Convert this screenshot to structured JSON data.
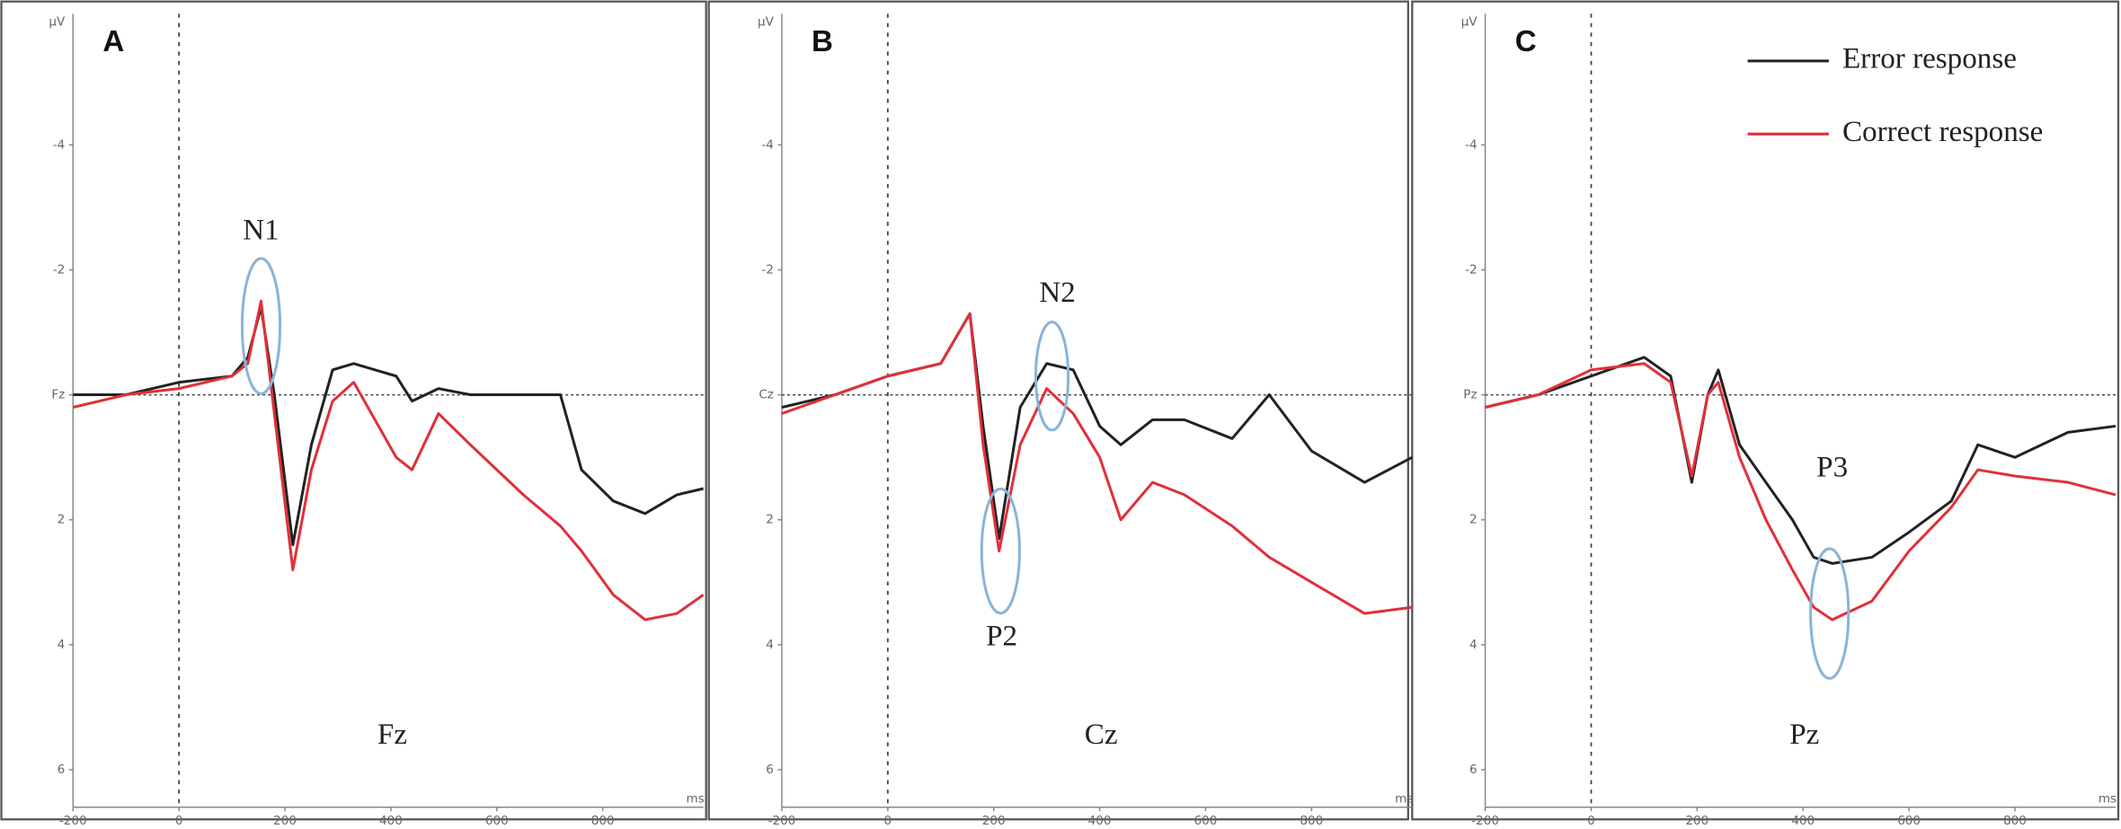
{
  "chart_data": [
    {
      "type": "line",
      "panel": "A",
      "channel": "Fz",
      "y_label": "μV",
      "x_label": "ms",
      "xlim": [
        -200,
        990
      ],
      "xticks": [
        -200,
        0,
        200,
        400,
        600,
        800
      ],
      "ylim": [
        -6.1,
        6.6
      ],
      "y_inverted": true,
      "yticks": [
        -4,
        -2,
        {
          "value": 0,
          "label": "Fz"
        },
        2,
        4,
        6
      ],
      "x": [
        -200,
        -100,
        0,
        100,
        130,
        155,
        180,
        215,
        250,
        290,
        330,
        370,
        410,
        440,
        490,
        550,
        650,
        720,
        760,
        820,
        880,
        940,
        990
      ],
      "series": [
        {
          "color": "#222222",
          "values": [
            0,
            0,
            -0.2,
            -0.3,
            -0.6,
            -1.4,
            0,
            2.4,
            0.8,
            -0.4,
            -0.5,
            -0.4,
            -0.3,
            0.1,
            -0.1,
            0,
            0,
            0,
            1.2,
            1.7,
            1.9,
            1.6,
            1.5
          ]
        },
        {
          "color": "#e0303a",
          "values": [
            0.2,
            0,
            -0.1,
            -0.3,
            -0.5,
            -1.5,
            0.3,
            2.8,
            1.2,
            0.1,
            -0.2,
            0.4,
            1.0,
            1.2,
            0.3,
            0.8,
            1.6,
            2.1,
            2.5,
            3.2,
            3.6,
            3.5,
            3.2
          ]
        }
      ],
      "annotations": [
        "N1"
      ]
    },
    {
      "type": "line",
      "panel": "B",
      "channel": "Cz",
      "y_label": "μV",
      "x_label": "ms",
      "xlim": [
        -200,
        990
      ],
      "xticks": [
        -200,
        0,
        200,
        400,
        600,
        800
      ],
      "ylim": [
        -6.1,
        6.6
      ],
      "y_inverted": true,
      "yticks": [
        -4,
        -2,
        {
          "value": 0,
          "label": "Cz"
        },
        2,
        4,
        6
      ],
      "x": [
        -200,
        -100,
        0,
        100,
        155,
        180,
        210,
        250,
        300,
        350,
        400,
        440,
        500,
        560,
        650,
        720,
        800,
        900,
        990
      ],
      "series": [
        {
          "color": "#222222",
          "values": [
            0.2,
            0,
            -0.3,
            -0.5,
            -1.3,
            0.5,
            2.3,
            0.2,
            -0.5,
            -0.4,
            0.5,
            0.8,
            0.4,
            0.4,
            0.7,
            0,
            0.9,
            1.4,
            1.0
          ]
        },
        {
          "color": "#e0303a",
          "values": [
            0.3,
            0,
            -0.3,
            -0.5,
            -1.3,
            0.8,
            2.5,
            0.8,
            -0.1,
            0.3,
            1.0,
            2.0,
            1.4,
            1.6,
            2.1,
            2.6,
            3.0,
            3.5,
            3.4
          ]
        }
      ],
      "annotations": [
        "N2",
        "P2"
      ]
    },
    {
      "type": "line",
      "panel": "C",
      "channel": "Pz",
      "y_label": "μV",
      "x_label": "ms",
      "xlim": [
        -200,
        990
      ],
      "xticks": [
        -200,
        0,
        200,
        400,
        600,
        800
      ],
      "ylim": [
        -6.1,
        6.6
      ],
      "y_inverted": true,
      "yticks": [
        -4,
        -2,
        {
          "value": 0,
          "label": "Pz"
        },
        2,
        4,
        6
      ],
      "x": [
        -200,
        -100,
        0,
        100,
        150,
        190,
        220,
        240,
        280,
        330,
        380,
        420,
        455,
        530,
        600,
        680,
        730,
        800,
        900,
        990
      ],
      "series": [
        {
          "name": "Error response",
          "color": "#222222",
          "values": [
            0.2,
            0,
            -0.3,
            -0.6,
            -0.3,
            1.4,
            0,
            -0.4,
            0.8,
            1.4,
            2.0,
            2.6,
            2.7,
            2.6,
            2.2,
            1.7,
            0.8,
            1.0,
            0.6,
            0.5
          ]
        },
        {
          "name": "Correct response",
          "color": "#e0303a",
          "values": [
            0.2,
            0,
            -0.4,
            -0.5,
            -0.2,
            1.3,
            0,
            -0.2,
            1.0,
            2.0,
            2.8,
            3.4,
            3.6,
            3.3,
            2.5,
            1.8,
            1.2,
            1.3,
            1.4,
            1.6
          ]
        }
      ],
      "annotations": [
        "P3"
      ],
      "legend": "upper right"
    }
  ]
}
